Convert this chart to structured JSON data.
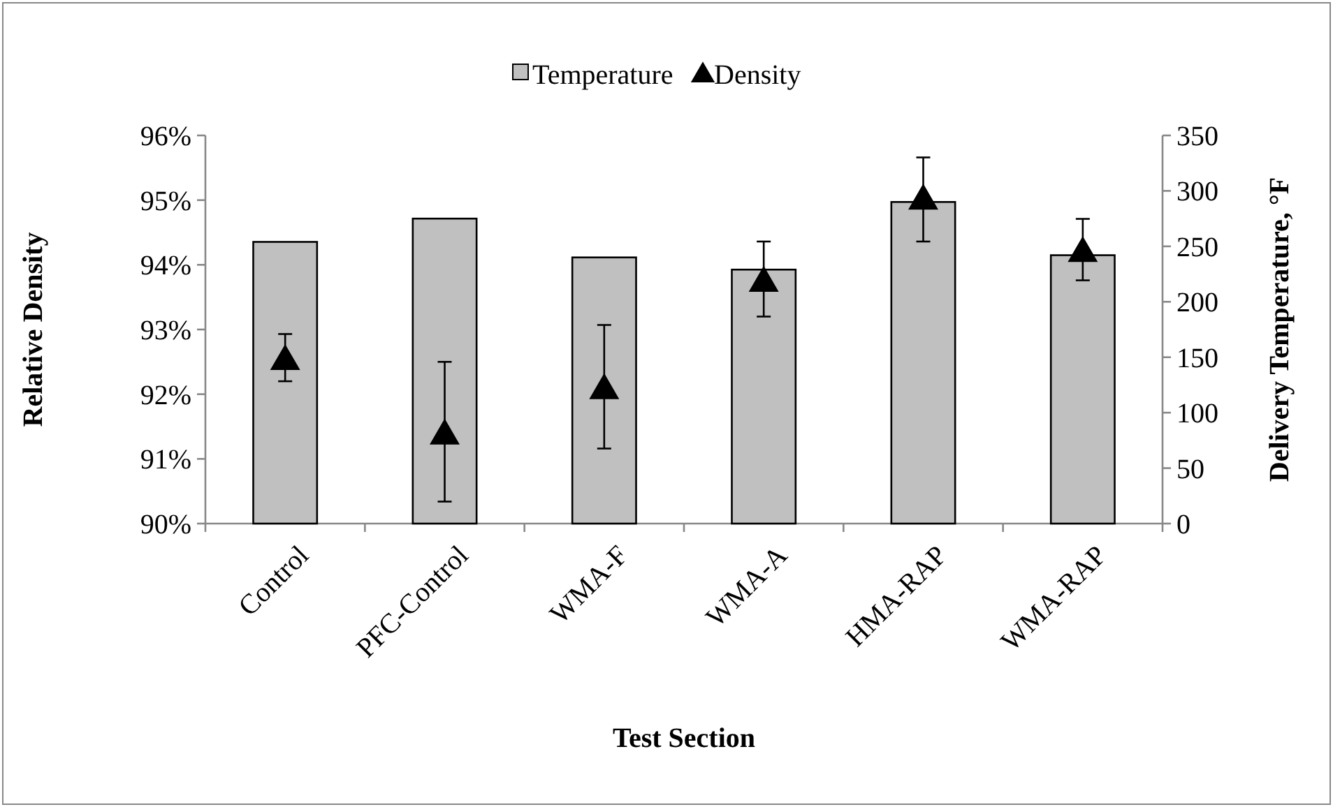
{
  "chart_data": {
    "type": "bar",
    "categories": [
      "Control",
      "PFC-Control",
      "WMA-F",
      "WMA-A",
      "HMA-RAP",
      "WMA-RAP"
    ],
    "xlabel": "Test Section",
    "ylabel": "Relative Density",
    "y2label": "Delivery Temperature, °F",
    "series": [
      {
        "name": "Temperature",
        "axis": "y2",
        "color": "#c0c0c0",
        "values": [
          254,
          275,
          240,
          229,
          290,
          242
        ]
      },
      {
        "name": "Density",
        "type": "scatter",
        "marker": "triangle",
        "color": "#000000",
        "x": [
          "Control",
          "PFC-Control",
          "WMA-F",
          "WMA-A",
          "HMA-RAP",
          "WMA-RAP"
        ],
        "values": [
          92.55,
          91.4,
          92.1,
          93.76,
          95.03,
          94.22
        ],
        "errors": [
          [
            92.2,
            92.93
          ],
          [
            90.34,
            92.5
          ],
          [
            91.16,
            93.07
          ],
          [
            93.2,
            94.36
          ],
          [
            94.36,
            95.66
          ],
          [
            93.76,
            94.71
          ]
        ]
      }
    ],
    "ylim": [
      90,
      96
    ],
    "yticks": [
      {
        "value": 90,
        "label": "90%"
      },
      {
        "value": 91,
        "label": "91%"
      },
      {
        "value": 92,
        "label": "92%"
      },
      {
        "value": 93,
        "label": "93%"
      },
      {
        "value": 94,
        "label": "94%"
      },
      {
        "value": 95,
        "label": "95%"
      },
      {
        "value": 96,
        "label": "96%"
      }
    ],
    "y2lim": [
      0,
      350
    ],
    "y2ticks": [
      0,
      50,
      100,
      150,
      200,
      250,
      300,
      350
    ],
    "legend": "top",
    "grid": false
  }
}
